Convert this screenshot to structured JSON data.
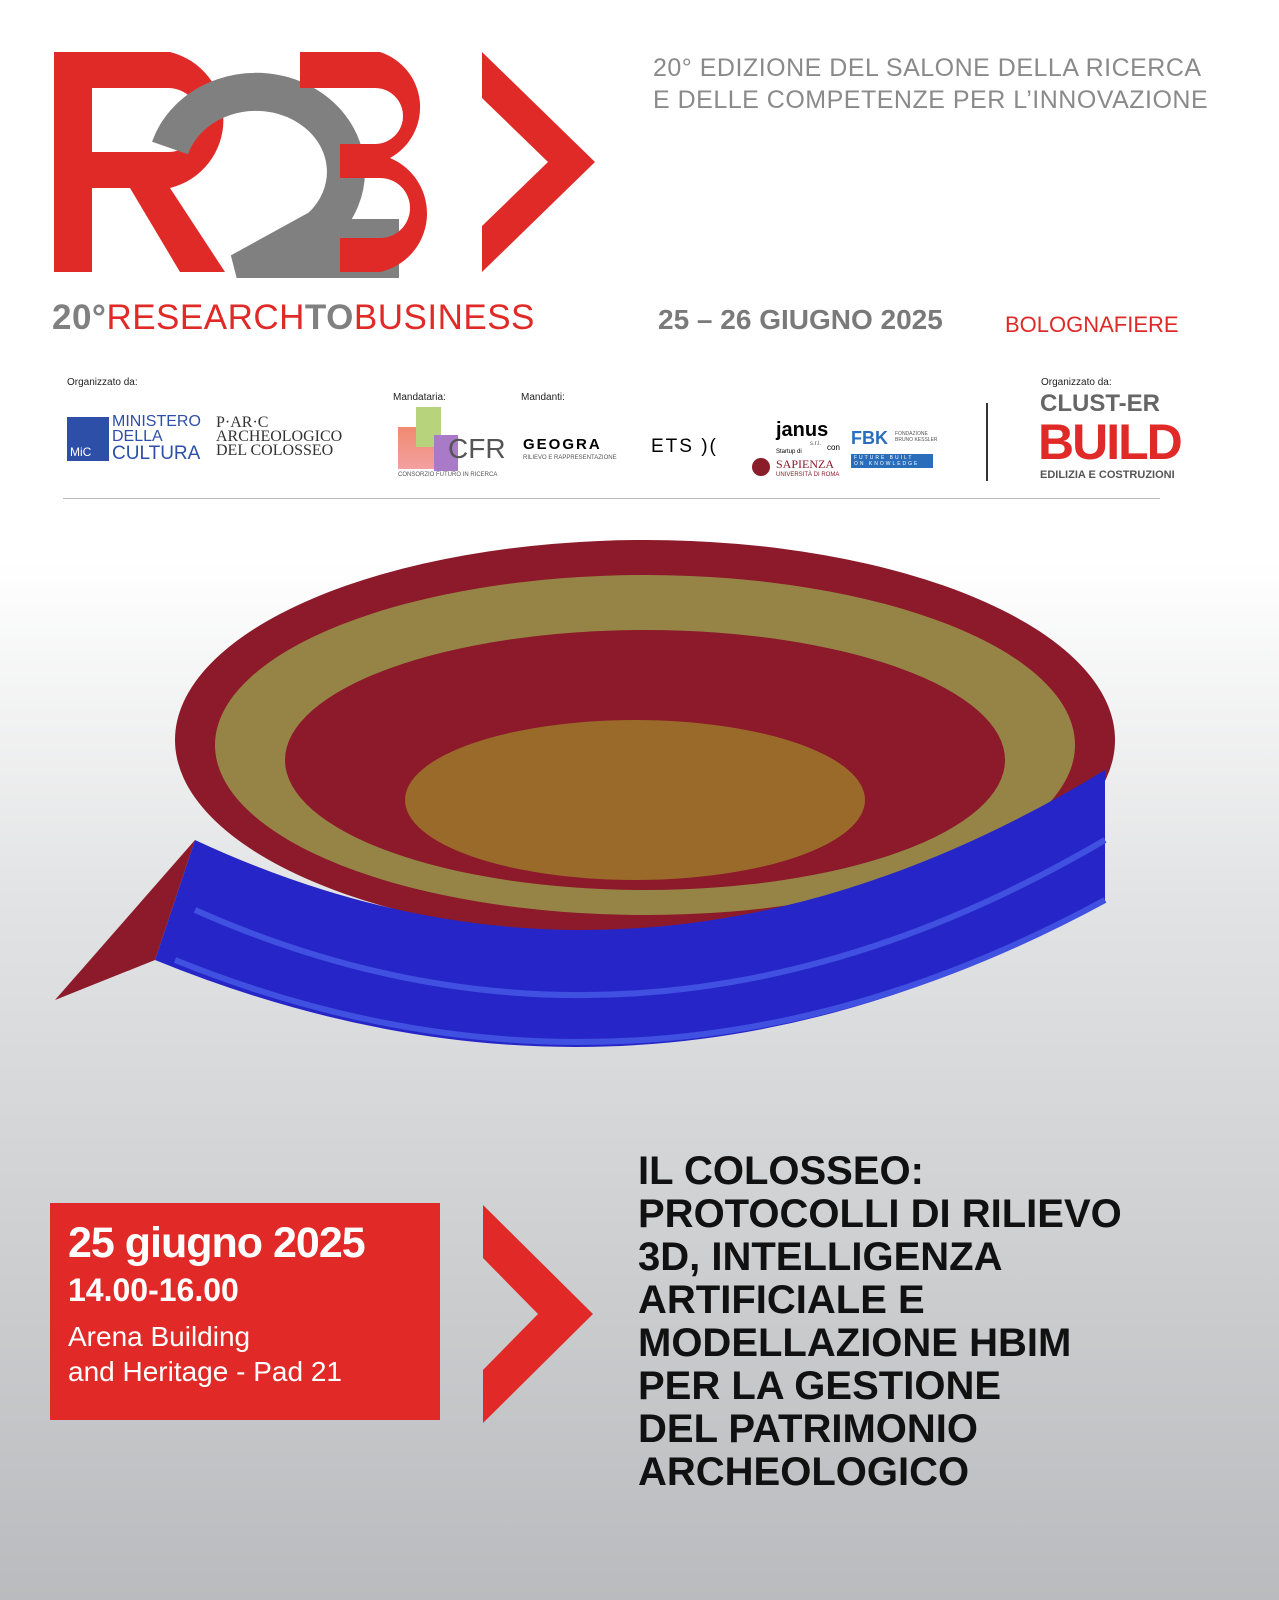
{
  "logo": {
    "text": "R2B",
    "colors": {
      "red": "#e02a27",
      "grey": "#808080"
    }
  },
  "tagline": [
    "20° EDIZIONE DEL SALONE DELLA RICERCA",
    "E DELLE COMPETENZE PER L’INNOVAZIONE"
  ],
  "event_name": {
    "prefix": "20°",
    "red1": "RESEARCH",
    "grey": "TO",
    "red2": "BUSINESS"
  },
  "event_dates": "25 – 26 GIUGNO 2025",
  "event_venue": "BOLOGNAFIERE",
  "sponsors": {
    "organized_label": "Organizzato da:",
    "ministero": [
      "MINISTERO",
      "DELLA",
      "CULTURA"
    ],
    "mic": "MiC",
    "parco": [
      "P·AR·C",
      "ARCHEOLOGICO",
      "DEL COLOSSEO"
    ],
    "mandataria_label": "Mandataria:",
    "cfr": "CFR",
    "cfr_sub": "CONSORZIO FUTURO IN RICERCA",
    "mandanti_label": "Mandanti:",
    "geogra": "GEOGRA",
    "geogra_sub": "RILIEVO E RAPPRESENTAZIONE",
    "ets": "ETS",
    "janus": "janus",
    "janus_srl": "s.r.l.",
    "startup": "Startup di",
    "sapienza": "SAPIENZA",
    "sapienza_sub": "UNIVERSITÀ DI ROMA",
    "con": "con",
    "fbk": "FBK",
    "fbk_name": [
      "FONDAZIONE",
      "BRUNO KESSLER"
    ],
    "fbk_sub": [
      "FUTURE BUILT",
      "ON KNOWLEDGE"
    ],
    "organized_label2": "Organizzato da:",
    "clust": "CLUST-ER",
    "build": "BUILD",
    "build_sub": "EDILIZIA E COSTRUZIONI"
  },
  "session": {
    "date": "25 giugno 2025",
    "time": "14.00-16.00",
    "place": [
      "Arena Building",
      "and Heritage - Pad 21"
    ]
  },
  "title": [
    "IL COLOSSEO:",
    "PROTOCOLLI DI RILIEVO",
    "3D, INTELLIGENZA",
    "ARTIFICIALE E",
    "MODELLAZIONE HBIM",
    "PER LA GESTIONE",
    "DEL PATRIMONIO",
    "ARCHEOLOGICO"
  ]
}
